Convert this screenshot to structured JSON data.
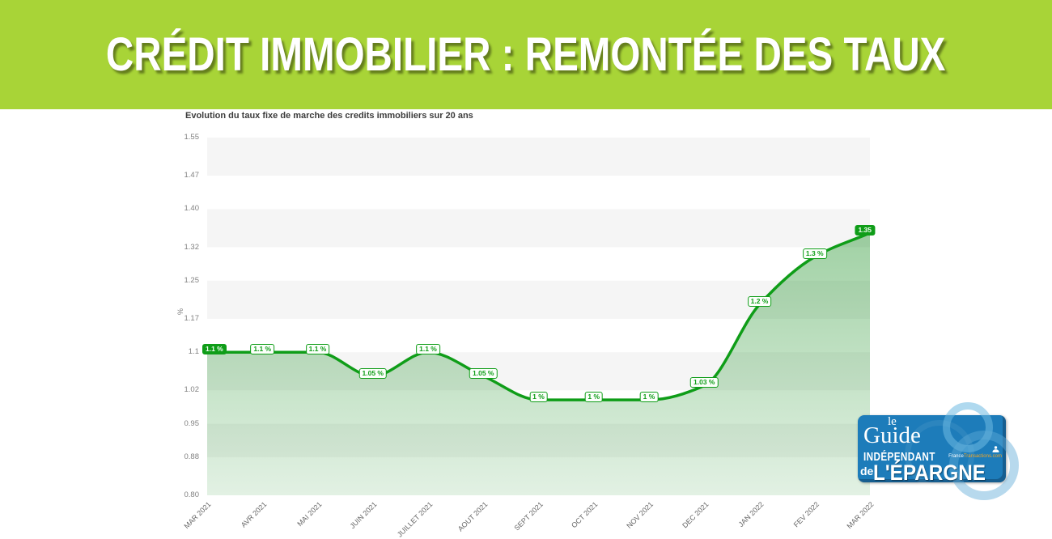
{
  "banner": {
    "title": "CRÉDIT IMMOBILIER : REMONTÉE DES TAUX",
    "bg_color": "#a8d437"
  },
  "chart_data": {
    "type": "area",
    "title": "Evolution du taux fixe de marche des credits immobiliers sur 20 ans",
    "xlabel": "",
    "ylabel": "%",
    "categories": [
      "MAR 2021",
      "AVR 2021",
      "MAI 2021",
      "JUIN 2021",
      "JUILLET 2021",
      "AOUT 2021",
      "SEPT 2021",
      "OCT 2021",
      "NOV 2021",
      "DEC 2021",
      "JAN 2022",
      "FEV 2022",
      "MAR 2022"
    ],
    "values": [
      1.1,
      1.1,
      1.1,
      1.05,
      1.1,
      1.05,
      1.0,
      1.0,
      1.0,
      1.03,
      1.2,
      1.3,
      1.35
    ],
    "point_labels": [
      "1.1 %",
      "1.1 %",
      "1.1 %",
      "1.05 %",
      "1.1 %",
      "1.05 %",
      "1 %",
      "1 %",
      "1 %",
      "1.03 %",
      "1.2 %",
      "1.3 %",
      "1.35"
    ],
    "ylim": [
      0.8,
      1.55
    ],
    "ytick_values": [
      1.55,
      1.47,
      1.4,
      1.32,
      1.25,
      1.17,
      1.1,
      1.02,
      0.95,
      0.88,
      0.8
    ],
    "ytick_labels": [
      "1.55",
      "1.47",
      "1.40",
      "1.32",
      "1.25",
      "1.17",
      "1.1",
      "1.02",
      "0.95",
      "0.88",
      "0.80"
    ],
    "grid": "alternating-horizontal-bands",
    "legend": "none",
    "colors": {
      "line": "#0f9d18",
      "band": "#f5f5f5",
      "area_top": "rgba(18,140,28,0.40)",
      "area_bottom": "rgba(18,140,28,0.12)"
    }
  },
  "logo": {
    "le": "le",
    "guide": "Guide",
    "independant": "INDÉPENDANT",
    "brand_white": "France",
    "brand_orange": "Transactions.com",
    "de": "de",
    "epargne": "L'ÉPARGNE",
    "bg_color": "#1d7cba"
  }
}
